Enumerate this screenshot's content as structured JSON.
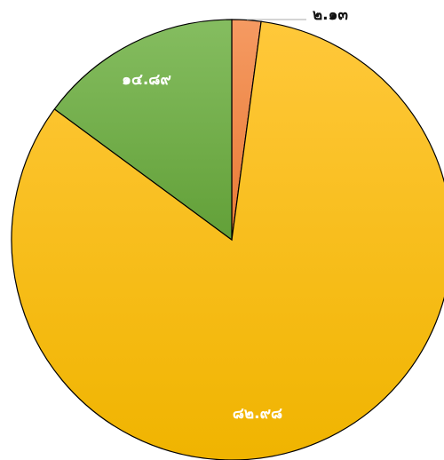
{
  "chart_data": {
    "type": "pie",
    "categories": [
      null,
      null,
      null
    ],
    "values": [
      2.13,
      82.98,
      14.89
    ],
    "value_labels": [
      "๒.๑๓",
      "๘๒.๙๘",
      "๑๔.๘๙"
    ],
    "colors": [
      "#f08a4b",
      "#ffc000",
      "#70ad47"
    ],
    "start_angle": 0,
    "direction": "clockwise"
  }
}
